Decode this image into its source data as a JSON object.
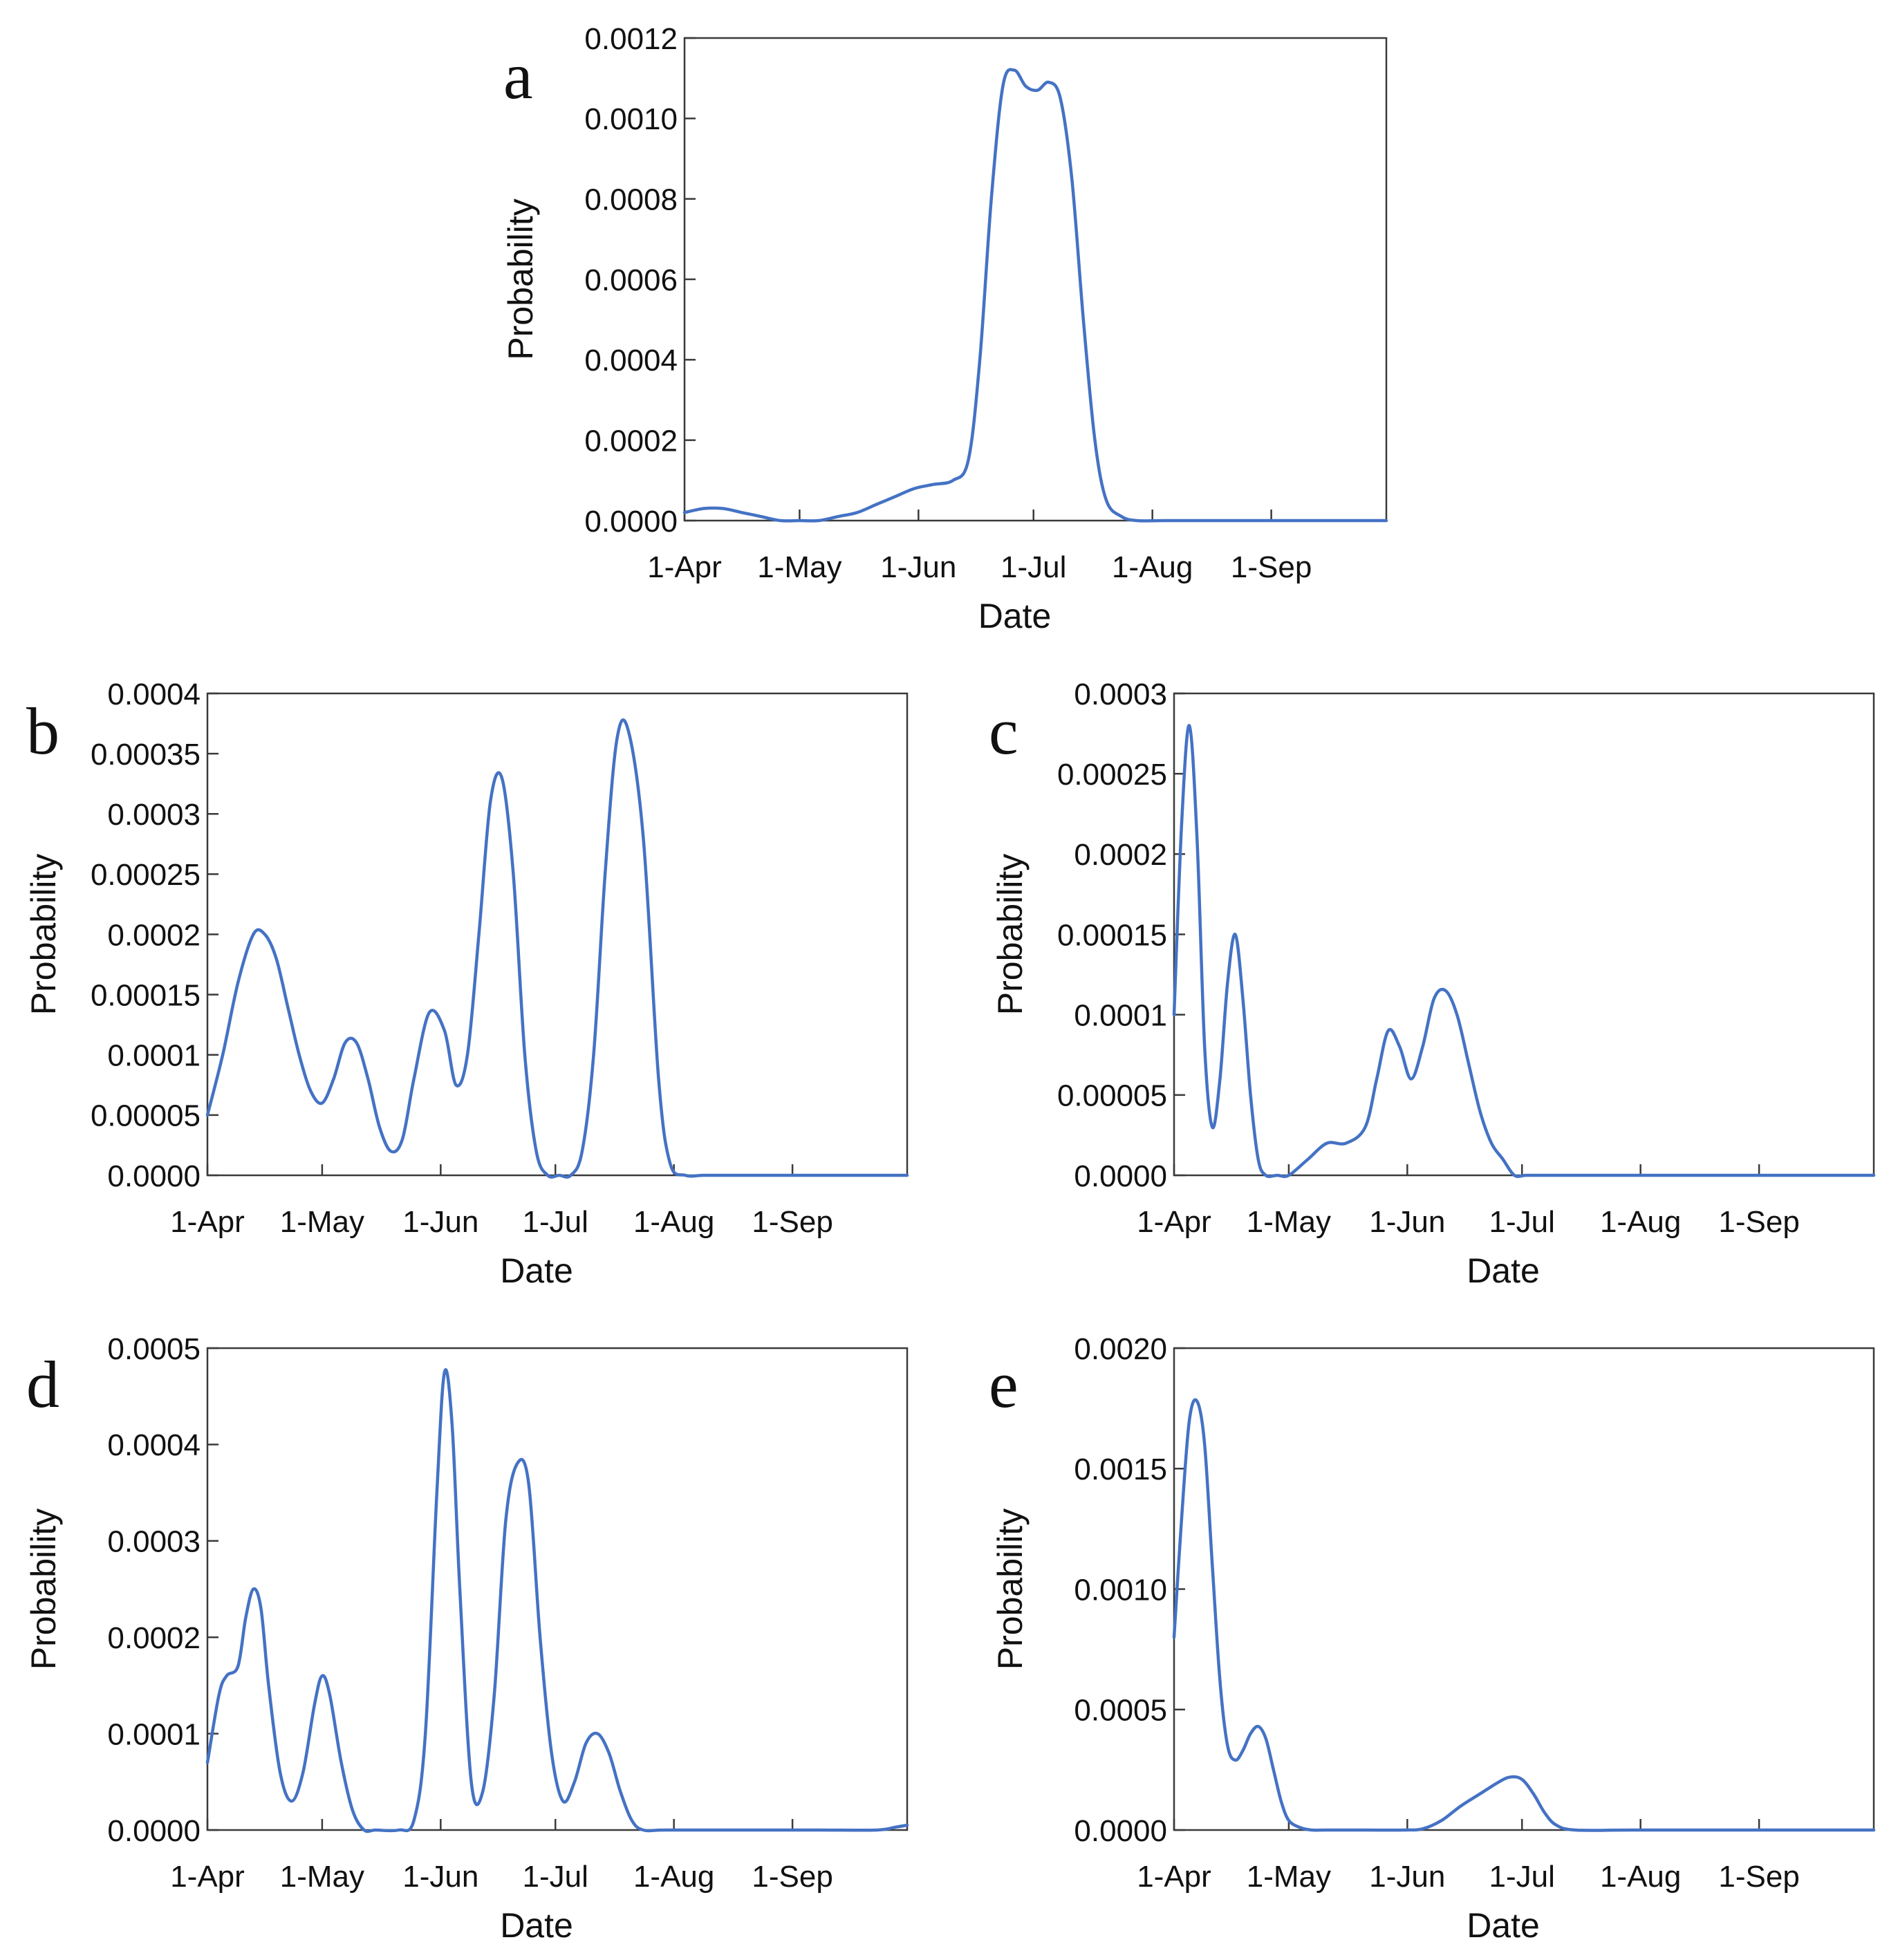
{
  "colors": {
    "series": "#4472c4",
    "axis": "#3a3a3a",
    "text": "#111111"
  },
  "chart_data": [
    {
      "panel": "a",
      "type": "line",
      "xlabel": "Date",
      "ylabel": "Probability",
      "x_ticks": [
        "1-Apr",
        "1-May",
        "1-Jun",
        "1-Jul",
        "1-Aug",
        "1-Sep"
      ],
      "x_tick_days": [
        0,
        30,
        61,
        91,
        122,
        153
      ],
      "y_ticks": [
        "0.0000",
        "0.0002",
        "0.0004",
        "0.0006",
        "0.0008",
        "0.0010",
        "0.0012"
      ],
      "ylim": [
        0,
        0.0012
      ],
      "xlim_days": [
        0,
        183
      ],
      "legend": "none",
      "grid": false,
      "series": [
        {
          "x_days": [
            0,
            5,
            10,
            15,
            20,
            25,
            30,
            35,
            40,
            45,
            50,
            55,
            60,
            65,
            70,
            74,
            77,
            80,
            83,
            86,
            89,
            92,
            95,
            98,
            101,
            104,
            107,
            110,
            114,
            118,
            125,
            140,
            160,
            183
          ],
          "values": [
            2e-05,
            3e-05,
            3e-05,
            2e-05,
            1e-05,
            0.0,
            0.0,
            0.0,
            1e-05,
            2e-05,
            4e-05,
            6e-05,
            8e-05,
            9e-05,
            0.0001,
            0.00015,
            0.0004,
            0.0008,
            0.00108,
            0.00112,
            0.00108,
            0.00107,
            0.00109,
            0.00105,
            0.00085,
            0.0005,
            0.0002,
            5e-05,
            1e-05,
            0.0,
            0.0,
            0.0,
            0.0,
            0.0
          ]
        }
      ]
    },
    {
      "panel": "b",
      "type": "line",
      "xlabel": "Date",
      "ylabel": "Probability",
      "x_ticks": [
        "1-Apr",
        "1-May",
        "1-Jun",
        "1-Jul",
        "1-Aug",
        "1-Sep"
      ],
      "x_tick_days": [
        0,
        30,
        61,
        91,
        122,
        153
      ],
      "y_ticks": [
        "0.0000",
        "0.00005",
        "0.0001",
        "0.00015",
        "0.0002",
        "0.00025",
        "0.0003",
        "0.00035",
        "0.0004"
      ],
      "ylim": [
        0,
        0.0004
      ],
      "xlim_days": [
        0,
        183
      ],
      "legend": "none",
      "grid": false,
      "series": [
        {
          "x_days": [
            0,
            4,
            8,
            12,
            15,
            18,
            21,
            24,
            27,
            30,
            33,
            36,
            39,
            42,
            45,
            48,
            51,
            54,
            58,
            62,
            65,
            68,
            71,
            74,
            77,
            80,
            83,
            86,
            89,
            92,
            95,
            98,
            101,
            104,
            107,
            110,
            114,
            118,
            121,
            125,
            130,
            140,
            160,
            183
          ],
          "values": [
            5e-05,
            0.0001,
            0.00016,
            0.0002,
            0.0002,
            0.00018,
            0.00014,
            0.0001,
            7e-05,
            6e-05,
            8e-05,
            0.00011,
            0.00011,
            8e-05,
            4e-05,
            2e-05,
            3e-05,
            8e-05,
            0.000135,
            0.00012,
            7.5e-05,
            0.0001,
            0.0002,
            0.00031,
            0.00033,
            0.00025,
            0.0001,
            2e-05,
            0.0,
            0.0,
            0.0,
            2e-05,
            0.0001,
            0.00025,
            0.00036,
            0.00037,
            0.00028,
            8e-05,
            1e-05,
            0.0,
            0.0,
            0.0,
            0.0,
            0.0
          ]
        }
      ]
    },
    {
      "panel": "c",
      "type": "line",
      "xlabel": "Date",
      "ylabel": "Probability",
      "x_ticks": [
        "1-Apr",
        "1-May",
        "1-Jun",
        "1-Jul",
        "1-Aug",
        "1-Sep"
      ],
      "x_tick_days": [
        0,
        30,
        61,
        91,
        122,
        153
      ],
      "y_ticks": [
        "0.0000",
        "0.00005",
        "0.0001",
        "0.00015",
        "0.0002",
        "0.00025",
        "0.0003"
      ],
      "ylim": [
        0,
        0.0003
      ],
      "xlim_days": [
        0,
        183
      ],
      "legend": "none",
      "grid": false,
      "series": [
        {
          "x_days": [
            0,
            2,
            4,
            6,
            8,
            10,
            12,
            14,
            16,
            18,
            20,
            22,
            24,
            27,
            30,
            35,
            40,
            45,
            50,
            53,
            56,
            59,
            62,
            65,
            68,
            71,
            74,
            77,
            80,
            83,
            86,
            89,
            92,
            96,
            100,
            110,
            130,
            160,
            183
          ],
          "values": [
            0.0001,
            0.00022,
            0.00028,
            0.00021,
            8e-05,
            3e-05,
            6e-05,
            0.00012,
            0.00015,
            0.00011,
            5e-05,
            1e-05,
            0.0,
            0.0,
            0.0,
            1e-05,
            2e-05,
            2e-05,
            3e-05,
            6e-05,
            9e-05,
            8e-05,
            6e-05,
            8e-05,
            0.00011,
            0.000115,
            0.0001,
            7e-05,
            4e-05,
            2e-05,
            1e-05,
            0.0,
            0.0,
            0.0,
            0.0,
            0.0,
            0.0,
            0.0,
            0.0
          ]
        }
      ]
    },
    {
      "panel": "d",
      "type": "line",
      "xlabel": "Date",
      "ylabel": "Probability",
      "x_ticks": [
        "1-Apr",
        "1-May",
        "1-Jun",
        "1-Jul",
        "1-Aug",
        "1-Sep"
      ],
      "x_tick_days": [
        0,
        30,
        61,
        91,
        122,
        153
      ],
      "y_ticks": [
        "0.0000",
        "0.0001",
        "0.0002",
        "0.0003",
        "0.0004",
        "0.0005"
      ],
      "ylim": [
        0,
        0.0005
      ],
      "xlim_days": [
        0,
        183
      ],
      "legend": "none",
      "grid": false,
      "series": [
        {
          "x_days": [
            0,
            3,
            5,
            8,
            10,
            12,
            14,
            16,
            19,
            22,
            25,
            28,
            30,
            32,
            35,
            38,
            41,
            44,
            50,
            54,
            57,
            60,
            62,
            64,
            66,
            69,
            72,
            75,
            78,
            81,
            84,
            87,
            90,
            93,
            96,
            99,
            102,
            105,
            108,
            111,
            114,
            120,
            140,
            160,
            175,
            180,
            183
          ],
          "values": [
            7e-05,
            0.00014,
            0.00016,
            0.00017,
            0.00022,
            0.00025,
            0.00023,
            0.00015,
            6e-05,
            3e-05,
            6e-05,
            0.00013,
            0.00016,
            0.00014,
            7e-05,
            2e-05,
            0.0,
            0.0,
            0.0,
            1e-05,
            0.0001,
            0.00035,
            0.000475,
            0.00042,
            0.00025,
            5e-05,
            4e-05,
            0.00014,
            0.00032,
            0.00038,
            0.00036,
            0.0002,
            8e-05,
            3e-05,
            5e-05,
            9e-05,
            0.0001,
            8e-05,
            4e-05,
            1e-05,
            0.0,
            0.0,
            0.0,
            0.0,
            0.0,
            3e-06,
            5e-06
          ]
        }
      ]
    },
    {
      "panel": "e",
      "type": "line",
      "xlabel": "Date",
      "ylabel": "Probability",
      "x_ticks": [
        "1-Apr",
        "1-May",
        "1-Jun",
        "1-Jul",
        "1-Aug",
        "1-Sep"
      ],
      "x_tick_days": [
        0,
        30,
        61,
        91,
        122,
        153
      ],
      "y_ticks": [
        "0.0000",
        "0.0005",
        "0.0010",
        "0.0015",
        "0.0020"
      ],
      "ylim": [
        0,
        0.002
      ],
      "xlim_days": [
        0,
        183
      ],
      "legend": "none",
      "grid": false,
      "series": [
        {
          "x_days": [
            0,
            2,
            4,
            6,
            8,
            10,
            12,
            14,
            16,
            18,
            20,
            22,
            24,
            26,
            28,
            30,
            33,
            36,
            40,
            50,
            60,
            65,
            70,
            75,
            80,
            85,
            88,
            91,
            94,
            97,
            100,
            105,
            120,
            150,
            183
          ],
          "values": [
            0.0008,
            0.0013,
            0.0017,
            0.00178,
            0.0016,
            0.0011,
            0.00062,
            0.00035,
            0.00029,
            0.00033,
            0.0004,
            0.00043,
            0.00038,
            0.00025,
            0.00012,
            4e-05,
            1e-05,
            0.0,
            0.0,
            0.0,
            0.0,
            5e-06,
            4e-05,
            0.0001,
            0.00015,
            0.0002,
            0.00022,
            0.00021,
            0.00015,
            7e-05,
            2e-05,
            0.0,
            0.0,
            0.0,
            0.0
          ]
        }
      ]
    }
  ]
}
